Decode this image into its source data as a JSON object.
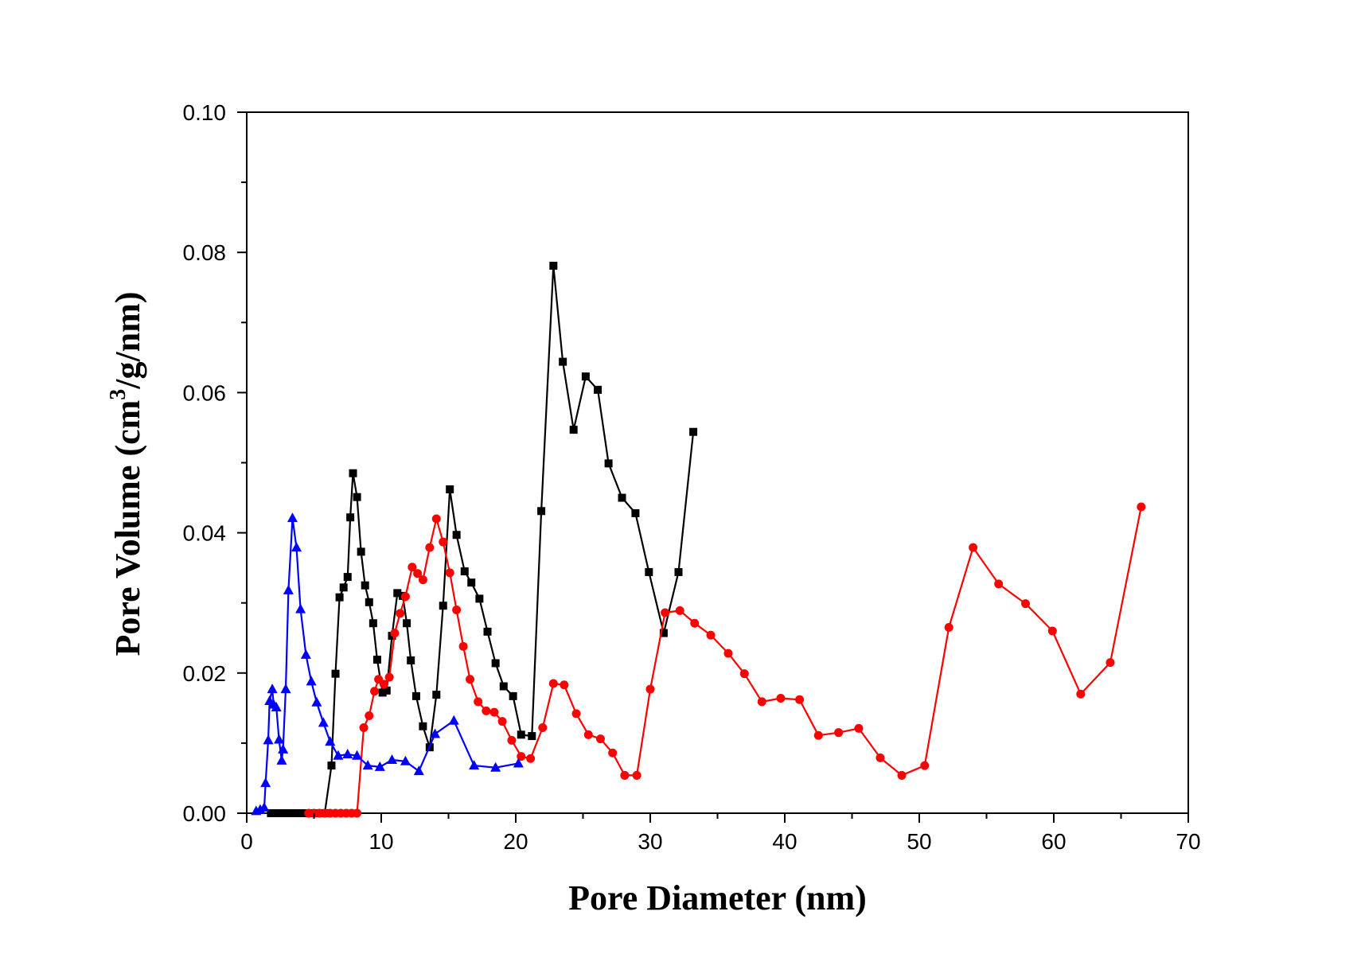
{
  "chart_data": {
    "type": "line",
    "xlabel": "Pore Diameter (nm)",
    "ylabel_parts": {
      "pre": "Pore Volume (cm",
      "sup": "3",
      "post": "/g/nm)"
    },
    "xlim": [
      0,
      70
    ],
    "ylim": [
      0,
      0.1
    ],
    "x_ticks": [
      0,
      10,
      20,
      30,
      40,
      50,
      60,
      70
    ],
    "x_tick_labels": [
      "0",
      "10",
      "20",
      "30",
      "40",
      "50",
      "60",
      "70"
    ],
    "y_ticks": [
      0,
      0.02,
      0.04,
      0.06,
      0.08,
      0.1
    ],
    "y_tick_labels": [
      "0.00",
      "0.02",
      "0.04",
      "0.06",
      "0.08",
      "0.10"
    ],
    "grid": false,
    "legend": "none",
    "series": [
      {
        "color": "#000000",
        "marker": "square",
        "points": [
          [
            1.8,
            0.0
          ],
          [
            2.3,
            0.0
          ],
          [
            2.8,
            0.0
          ],
          [
            3.3,
            0.0
          ],
          [
            3.8,
            0.0
          ],
          [
            4.3,
            0.0
          ],
          [
            4.8,
            0.0
          ],
          [
            5.3,
            0.0
          ],
          [
            5.8,
            0.0
          ],
          [
            6.3,
            0.0068
          ],
          [
            6.6,
            0.0199
          ],
          [
            6.9,
            0.0308
          ],
          [
            7.2,
            0.0322
          ],
          [
            7.5,
            0.0337
          ],
          [
            7.7,
            0.0422
          ],
          [
            7.9,
            0.0485
          ],
          [
            8.2,
            0.0451
          ],
          [
            8.5,
            0.0373
          ],
          [
            8.8,
            0.0325
          ],
          [
            9.1,
            0.0301
          ],
          [
            9.4,
            0.0271
          ],
          [
            9.7,
            0.0219
          ],
          [
            10.1,
            0.0172
          ],
          [
            10.4,
            0.0175
          ],
          [
            10.8,
            0.0253
          ],
          [
            11.2,
            0.0314
          ],
          [
            11.6,
            0.031
          ],
          [
            11.9,
            0.0271
          ],
          [
            12.2,
            0.0218
          ],
          [
            12.6,
            0.0167
          ],
          [
            13.1,
            0.0124
          ],
          [
            13.6,
            0.0094
          ],
          [
            14.1,
            0.0169
          ],
          [
            14.6,
            0.0296
          ],
          [
            15.1,
            0.0462
          ],
          [
            15.6,
            0.0397
          ],
          [
            16.2,
            0.0345
          ],
          [
            16.7,
            0.0329
          ],
          [
            17.3,
            0.0306
          ],
          [
            17.9,
            0.0259
          ],
          [
            18.5,
            0.0214
          ],
          [
            19.1,
            0.0181
          ],
          [
            19.8,
            0.0167
          ],
          [
            20.4,
            0.0112
          ],
          [
            21.2,
            0.011
          ],
          [
            21.9,
            0.0431
          ],
          [
            22.8,
            0.0781
          ],
          [
            23.5,
            0.0644
          ],
          [
            24.3,
            0.0547
          ],
          [
            25.2,
            0.0623
          ],
          [
            26.1,
            0.0604
          ],
          [
            26.9,
            0.0499
          ],
          [
            27.9,
            0.045
          ],
          [
            28.9,
            0.0428
          ],
          [
            29.9,
            0.0344
          ],
          [
            31.0,
            0.0257
          ],
          [
            32.1,
            0.0344
          ],
          [
            33.2,
            0.0544
          ]
        ]
      },
      {
        "color": "#ff0000",
        "marker": "circle",
        "points": [
          [
            4.6,
            0.0
          ],
          [
            5.0,
            0.0
          ],
          [
            5.4,
            0.0
          ],
          [
            5.8,
            0.0
          ],
          [
            6.2,
            0.0
          ],
          [
            6.6,
            0.0
          ],
          [
            7.0,
            0.0
          ],
          [
            7.4,
            0.0
          ],
          [
            7.8,
            0.0
          ],
          [
            8.2,
            0.0
          ],
          [
            8.7,
            0.0122
          ],
          [
            9.1,
            0.0139
          ],
          [
            9.5,
            0.0174
          ],
          [
            9.8,
            0.0191
          ],
          [
            10.2,
            0.0184
          ],
          [
            10.6,
            0.0194
          ],
          [
            11.0,
            0.0257
          ],
          [
            11.4,
            0.0285
          ],
          [
            11.8,
            0.0309
          ],
          [
            12.3,
            0.0351
          ],
          [
            12.7,
            0.0342
          ],
          [
            13.1,
            0.0333
          ],
          [
            13.6,
            0.0379
          ],
          [
            14.1,
            0.042
          ],
          [
            14.6,
            0.0387
          ],
          [
            15.1,
            0.0343
          ],
          [
            15.6,
            0.029
          ],
          [
            16.1,
            0.0238
          ],
          [
            16.6,
            0.0191
          ],
          [
            17.2,
            0.0159
          ],
          [
            17.8,
            0.0146
          ],
          [
            18.4,
            0.0144
          ],
          [
            19.0,
            0.0131
          ],
          [
            19.7,
            0.0104
          ],
          [
            20.4,
            0.0081
          ],
          [
            21.1,
            0.0078
          ],
          [
            22.0,
            0.0122
          ],
          [
            22.8,
            0.0185
          ],
          [
            23.6,
            0.0183
          ],
          [
            24.5,
            0.0142
          ],
          [
            25.4,
            0.0112
          ],
          [
            26.3,
            0.0106
          ],
          [
            27.2,
            0.0086
          ],
          [
            28.1,
            0.0054
          ],
          [
            29.0,
            0.0054
          ],
          [
            30.0,
            0.0177
          ],
          [
            31.1,
            0.0286
          ],
          [
            32.2,
            0.0289
          ],
          [
            33.3,
            0.0271
          ],
          [
            34.5,
            0.0254
          ],
          [
            35.8,
            0.0228
          ],
          [
            37.0,
            0.0199
          ],
          [
            38.3,
            0.0159
          ],
          [
            39.7,
            0.0164
          ],
          [
            41.1,
            0.0162
          ],
          [
            42.5,
            0.0111
          ],
          [
            44.0,
            0.0115
          ],
          [
            45.5,
            0.0121
          ],
          [
            47.1,
            0.0079
          ],
          [
            48.7,
            0.0054
          ],
          [
            50.4,
            0.0068
          ],
          [
            52.2,
            0.0265
          ],
          [
            54.0,
            0.0379
          ],
          [
            55.9,
            0.0327
          ],
          [
            57.9,
            0.0299
          ],
          [
            59.9,
            0.026
          ],
          [
            62.0,
            0.017
          ],
          [
            64.2,
            0.0215
          ],
          [
            66.5,
            0.0437
          ]
        ]
      },
      {
        "color": "#0000ff",
        "marker": "triangle",
        "points": [
          [
            0.7,
            0.0003
          ],
          [
            1.0,
            0.0005
          ],
          [
            1.3,
            0.0008
          ],
          [
            1.4,
            0.0043
          ],
          [
            1.6,
            0.0104
          ],
          [
            1.7,
            0.016
          ],
          [
            1.9,
            0.0177
          ],
          [
            2.0,
            0.0155
          ],
          [
            2.2,
            0.0151
          ],
          [
            2.4,
            0.0105
          ],
          [
            2.6,
            0.0075
          ],
          [
            2.7,
            0.0091
          ],
          [
            2.9,
            0.0177
          ],
          [
            3.1,
            0.0318
          ],
          [
            3.4,
            0.0421
          ],
          [
            3.7,
            0.0379
          ],
          [
            4.0,
            0.0291
          ],
          [
            4.4,
            0.0226
          ],
          [
            4.8,
            0.0188
          ],
          [
            5.2,
            0.0158
          ],
          [
            5.7,
            0.0129
          ],
          [
            6.2,
            0.0102
          ],
          [
            6.8,
            0.0082
          ],
          [
            7.5,
            0.0084
          ],
          [
            8.2,
            0.0082
          ],
          [
            9.0,
            0.0068
          ],
          [
            9.9,
            0.0066
          ],
          [
            10.8,
            0.0076
          ],
          [
            11.8,
            0.0074
          ],
          [
            12.8,
            0.006
          ],
          [
            14.0,
            0.0113
          ],
          [
            15.4,
            0.0132
          ],
          [
            16.9,
            0.0068
          ],
          [
            18.5,
            0.0065
          ],
          [
            20.2,
            0.0071
          ]
        ]
      }
    ]
  }
}
